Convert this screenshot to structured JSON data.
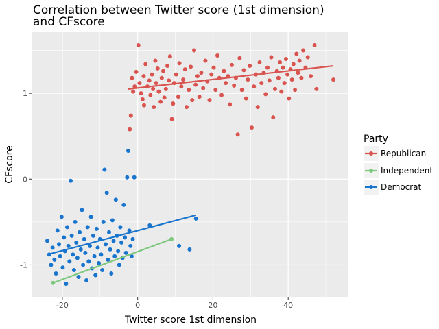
{
  "chart_data": {
    "type": "scatter",
    "title_lines": [
      "Correlation between Twitter score (1st dimension)",
      "and CFscore"
    ],
    "xlabel": "Twitter score 1st dimension",
    "ylabel": "CFscore",
    "xlim": [
      -28,
      56
    ],
    "ylim": [
      -1.38,
      1.72
    ],
    "x_ticks": [
      -20,
      0,
      20,
      40
    ],
    "x_tick_labels": [
      "-20",
      "0",
      "20",
      "40"
    ],
    "y_ticks": [
      -1,
      0,
      1
    ],
    "y_tick_labels": [
      "-1",
      "0",
      "1"
    ],
    "grid": true,
    "legend_placement": "right",
    "legend": {
      "title": "Party",
      "entries": [
        "Republican",
        "Independent",
        "Democrat"
      ]
    },
    "series": [
      {
        "name": "Republican",
        "color": "#d9534f",
        "fit_line": [
          [
            -2.5,
            1.05
          ],
          [
            52,
            1.32
          ]
        ],
        "points": [
          [
            0.2,
            1.56
          ],
          [
            -2.1,
            0.58
          ],
          [
            -1.8,
            0.74
          ],
          [
            -1.2,
            1.02
          ],
          [
            -0.8,
            1.08
          ],
          [
            -1.5,
            1.18
          ],
          [
            -0.4,
            1.25
          ],
          [
            0.5,
            1.12
          ],
          [
            0.9,
            1.0
          ],
          [
            1.3,
            0.93
          ],
          [
            1.7,
            0.86
          ],
          [
            1.6,
            1.2
          ],
          [
            2.1,
            1.34
          ],
          [
            2.6,
            1.08
          ],
          [
            3.1,
            1.15
          ],
          [
            3.4,
            0.98
          ],
          [
            3.8,
            1.22
          ],
          [
            4.1,
            1.05
          ],
          [
            4.3,
            0.84
          ],
          [
            4.7,
            1.38
          ],
          [
            4.9,
            1.12
          ],
          [
            5.3,
            1.29
          ],
          [
            5.6,
            1.02
          ],
          [
            6.1,
            0.9
          ],
          [
            6.4,
            1.18
          ],
          [
            6.8,
            1.26
          ],
          [
            7.1,
            0.95
          ],
          [
            7.5,
            1.05
          ],
          [
            7.9,
            1.32
          ],
          [
            8.3,
            1.15
          ],
          [
            8.6,
            1.43
          ],
          [
            9.1,
            0.7
          ],
          [
            9.4,
            0.88
          ],
          [
            9.7,
            1.12
          ],
          [
            10.2,
            1.22
          ],
          [
            10.8,
            0.96
          ],
          [
            11.1,
            1.35
          ],
          [
            11.6,
            1.08
          ],
          [
            12.1,
            1.16
          ],
          [
            12.6,
            1.28
          ],
          [
            13.0,
            0.84
          ],
          [
            13.6,
            1.04
          ],
          [
            14.1,
            1.31
          ],
          [
            14.5,
            0.92
          ],
          [
            15.0,
            1.5
          ],
          [
            15.4,
            1.1
          ],
          [
            15.9,
            1.2
          ],
          [
            16.4,
            0.96
          ],
          [
            16.9,
            1.24
          ],
          [
            17.4,
            1.06
          ],
          [
            18.0,
            1.38
          ],
          [
            18.5,
            1.14
          ],
          [
            19.1,
            0.92
          ],
          [
            19.6,
            1.22
          ],
          [
            20.2,
            1.3
          ],
          [
            20.7,
            1.04
          ],
          [
            21.2,
            1.44
          ],
          [
            21.7,
            1.18
          ],
          [
            22.3,
            0.98
          ],
          [
            22.9,
            1.26
          ],
          [
            23.4,
            1.12
          ],
          [
            24.0,
            1.2
          ],
          [
            24.5,
            0.87
          ],
          [
            25.0,
            1.33
          ],
          [
            25.6,
            1.09
          ],
          [
            26.1,
            1.18
          ],
          [
            26.6,
            0.52
          ],
          [
            27.1,
            1.41
          ],
          [
            27.7,
            1.04
          ],
          [
            28.2,
            1.27
          ],
          [
            28.8,
            0.94
          ],
          [
            29.3,
            1.16
          ],
          [
            29.8,
            1.32
          ],
          [
            30.3,
            0.6
          ],
          [
            30.9,
            1.08
          ],
          [
            31.4,
            1.22
          ],
          [
            31.9,
            0.84
          ],
          [
            32.4,
            1.36
          ],
          [
            32.9,
            1.12
          ],
          [
            33.5,
            1.24
          ],
          [
            34.0,
            0.99
          ],
          [
            34.5,
            1.3
          ],
          [
            35.0,
            1.15
          ],
          [
            35.5,
            1.42
          ],
          [
            36.0,
            0.72
          ],
          [
            36.5,
            1.05
          ],
          [
            37.0,
            1.26
          ],
          [
            37.4,
            1.18
          ],
          [
            37.8,
            1.36
          ],
          [
            38.2,
            1.02
          ],
          [
            38.6,
            1.3
          ],
          [
            39.0,
            1.12
          ],
          [
            39.4,
            1.4
          ],
          [
            39.8,
            1.22
          ],
          [
            40.2,
            0.94
          ],
          [
            40.6,
            1.28
          ],
          [
            41.0,
            1.16
          ],
          [
            41.4,
            1.34
          ],
          [
            41.8,
            1.04
          ],
          [
            42.2,
            1.46
          ],
          [
            42.6,
            1.24
          ],
          [
            43.0,
            1.38
          ],
          [
            43.5,
            1.18
          ],
          [
            44.0,
            1.5
          ],
          [
            44.6,
            1.3
          ],
          [
            45.2,
            1.42
          ],
          [
            46.0,
            1.2
          ],
          [
            47.0,
            1.56
          ],
          [
            47.5,
            1.05
          ],
          [
            52.0,
            1.16
          ]
        ]
      },
      {
        "name": "Independent",
        "color": "#7ec87e",
        "fit_line": [
          [
            -22.5,
            -1.21
          ],
          [
            9,
            -0.7
          ]
        ],
        "points": [
          [
            -22.5,
            -1.21
          ],
          [
            9,
            -0.7
          ]
        ]
      },
      {
        "name": "Democrat",
        "color": "#1874cd",
        "fit_line": [
          [
            -24,
            -0.88
          ],
          [
            15.5,
            -0.42
          ]
        ],
        "points": [
          [
            -24.0,
            -0.72
          ],
          [
            -23.5,
            -0.88
          ],
          [
            -23.0,
            -1.0
          ],
          [
            -22.6,
            -0.8
          ],
          [
            -22.1,
            -0.94
          ],
          [
            -21.7,
            -1.1
          ],
          [
            -21.3,
            -0.6
          ],
          [
            -20.9,
            -0.76
          ],
          [
            -20.6,
            -0.9
          ],
          [
            -20.2,
            -0.44
          ],
          [
            -19.9,
            -1.03
          ],
          [
            -19.6,
            -0.68
          ],
          [
            -19.3,
            -0.84
          ],
          [
            -19.0,
            -1.22
          ],
          [
            -18.7,
            -0.56
          ],
          [
            -18.4,
            -0.78
          ],
          [
            -18.1,
            -0.96
          ],
          [
            -17.8,
            -0.02
          ],
          [
            -17.5,
            -0.66
          ],
          [
            -17.2,
            -0.88
          ],
          [
            -16.9,
            -1.06
          ],
          [
            -16.6,
            -0.5
          ],
          [
            -16.3,
            -0.74
          ],
          [
            -16.0,
            -0.92
          ],
          [
            -15.7,
            -1.14
          ],
          [
            -15.4,
            -0.62
          ],
          [
            -15.1,
            -0.82
          ],
          [
            -14.8,
            -0.36
          ],
          [
            -14.5,
            -1.0
          ],
          [
            -14.2,
            -0.7
          ],
          [
            -13.9,
            -0.86
          ],
          [
            -13.6,
            -1.18
          ],
          [
            -13.3,
            -0.56
          ],
          [
            -13.0,
            -0.96
          ],
          [
            -12.7,
            -0.78
          ],
          [
            -12.4,
            -0.44
          ],
          [
            -12.1,
            -1.04
          ],
          [
            -11.8,
            -0.66
          ],
          [
            -11.5,
            -0.9
          ],
          [
            -11.2,
            -1.12
          ],
          [
            -10.9,
            -0.58
          ],
          [
            -10.6,
            -0.8
          ],
          [
            -10.3,
            -0.98
          ],
          [
            -10.0,
            -0.7
          ],
          [
            -9.7,
            -0.88
          ],
          [
            -9.4,
            -1.06
          ],
          [
            -9.1,
            -0.5
          ],
          [
            -8.8,
            0.11
          ],
          [
            -8.5,
            -0.76
          ],
          [
            -8.2,
            -0.16
          ],
          [
            -7.9,
            -0.94
          ],
          [
            -7.6,
            -0.62
          ],
          [
            -7.3,
            -0.82
          ],
          [
            -7.0,
            -1.1
          ],
          [
            -6.7,
            -0.48
          ],
          [
            -6.4,
            -0.72
          ],
          [
            -6.1,
            -0.9
          ],
          [
            -5.8,
            -0.24
          ],
          [
            -5.5,
            -0.66
          ],
          [
            -5.2,
            -0.84
          ],
          [
            -4.9,
            -1.0
          ],
          [
            -4.6,
            -0.56
          ],
          [
            -4.3,
            -0.74
          ],
          [
            -4.0,
            -0.92
          ],
          [
            -3.7,
            -0.3
          ],
          [
            -3.4,
            -0.68
          ],
          [
            -3.1,
            -0.86
          ],
          [
            -2.8,
            0.02
          ],
          [
            -2.5,
            0.33
          ],
          [
            -2.2,
            -0.6
          ],
          [
            -1.9,
            -0.78
          ],
          [
            -1.6,
            -0.9
          ],
          [
            -1.3,
            -0.7
          ],
          [
            -0.9,
            0.02
          ],
          [
            3.2,
            -0.54
          ],
          [
            11.0,
            -0.78
          ],
          [
            13.8,
            -0.82
          ],
          [
            15.5,
            -0.46
          ]
        ]
      }
    ]
  }
}
